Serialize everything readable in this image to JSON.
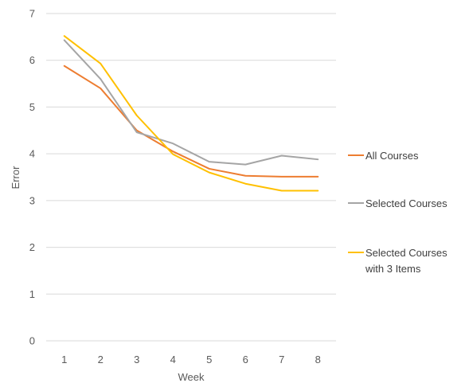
{
  "chart_data": {
    "type": "line",
    "title": "",
    "xlabel": "Week",
    "ylabel": "Error",
    "categories": [
      "1",
      "2",
      "3",
      "4",
      "5",
      "6",
      "7",
      "8"
    ],
    "ylim": [
      0,
      7
    ],
    "yticks": [
      "0",
      "1",
      "2",
      "3",
      "4",
      "5",
      "6",
      "7"
    ],
    "grid": "horizontal",
    "legend_position": "right",
    "series": [
      {
        "name": "All Courses",
        "color": "#ED7D31",
        "values": [
          5.88,
          5.4,
          4.5,
          4.05,
          3.68,
          3.53,
          3.51,
          3.51
        ]
      },
      {
        "name": "Selected Courses",
        "color": "#A5A5A5",
        "values": [
          6.43,
          5.6,
          4.46,
          4.22,
          3.83,
          3.77,
          3.96,
          3.88
        ]
      },
      {
        "name": "Selected Courses with 3 Items",
        "color": "#FFC000",
        "values": [
          6.52,
          5.93,
          4.82,
          3.99,
          3.6,
          3.36,
          3.21,
          3.21
        ]
      }
    ],
    "legend_lines": [
      [
        "All Courses"
      ],
      [
        "Selected Courses"
      ],
      [
        "Selected Courses",
        "with 3 Items"
      ]
    ]
  }
}
